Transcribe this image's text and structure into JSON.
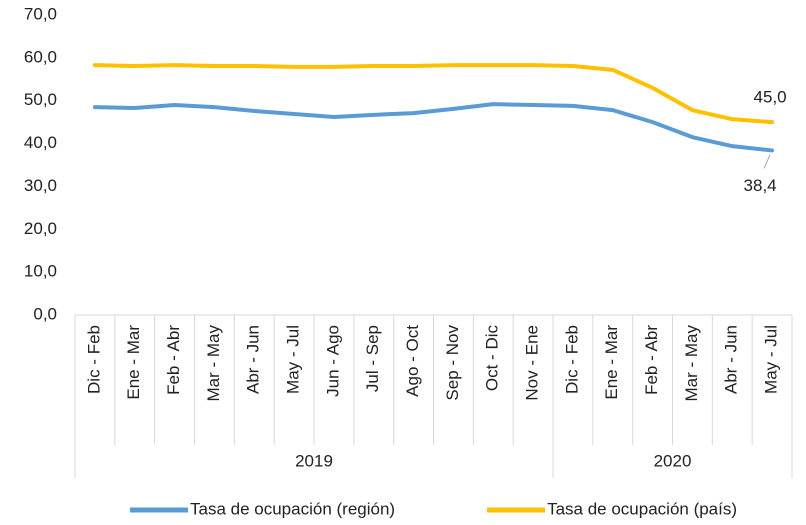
{
  "chart_data": {
    "type": "line",
    "categories": [
      "Dic - Feb",
      "Ene - Mar",
      "Feb - Abr",
      "Mar - May",
      "Abr - Jun",
      "May - Jul",
      "Jun - Ago",
      "Jul - Sep",
      "Ago - Oct",
      "Sep - Nov",
      "Oct - Dic",
      "Nov - Ene",
      "Dic - Feb",
      "Ene - Mar",
      "Feb - Abr",
      "Mar - May",
      "Abr - Jun",
      "May - Jul"
    ],
    "groups": [
      {
        "label": "2019",
        "count": 12
      },
      {
        "label": "2020",
        "count": 6
      }
    ],
    "series": [
      {
        "name": "Tasa de ocupación (región)",
        "color": "#5b9bd5",
        "values": [
          48.5,
          48.3,
          49.0,
          48.5,
          47.6,
          46.9,
          46.2,
          46.7,
          47.1,
          48.1,
          49.2,
          49.0,
          48.8,
          47.8,
          45.0,
          41.5,
          39.4,
          38.4
        ],
        "value_labels": [
          null,
          null,
          null,
          null,
          null,
          null,
          null,
          null,
          null,
          null,
          null,
          null,
          null,
          null,
          null,
          null,
          null,
          "38,4"
        ]
      },
      {
        "name": "Tasa de ocupación (país)",
        "color": "#ffc000",
        "values": [
          58.3,
          58.1,
          58.3,
          58.1,
          58.1,
          57.9,
          57.9,
          58.1,
          58.1,
          58.3,
          58.3,
          58.3,
          58.1,
          57.2,
          53.0,
          47.8,
          45.7,
          45.0
        ],
        "value_labels": [
          null,
          null,
          null,
          null,
          null,
          null,
          null,
          null,
          null,
          null,
          null,
          null,
          null,
          null,
          null,
          null,
          null,
          "45,0"
        ]
      }
    ],
    "ylim": [
      0,
      70
    ],
    "yticks": [
      {
        "value": 0,
        "label": "0,0"
      },
      {
        "value": 10,
        "label": "10,0"
      },
      {
        "value": 20,
        "label": "20,0"
      },
      {
        "value": 30,
        "label": "30,0"
      },
      {
        "value": 40,
        "label": "40,0"
      },
      {
        "value": 50,
        "label": "50,0"
      },
      {
        "value": 60,
        "label": "60,0"
      },
      {
        "value": 70,
        "label": "70,0"
      }
    ],
    "grid": false,
    "legend": "bottom"
  }
}
